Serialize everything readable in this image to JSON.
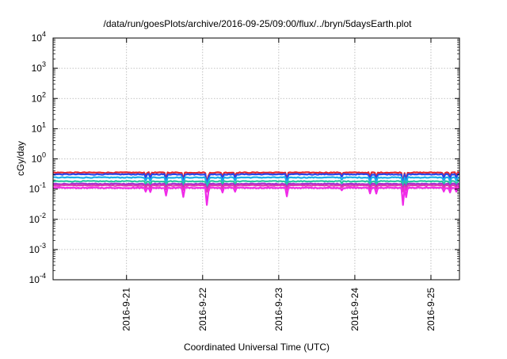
{
  "chart_data": {
    "type": "line",
    "title": "/data/run/goesPlots/archive/2016-09-25/09:00/flux/../bryn/5daysEarth.plot",
    "xlabel": "Coordinated Universal Time (UTC)",
    "ylabel": "cGy/day",
    "yscale": "log",
    "ylim": [
      0.0001,
      10000
    ],
    "y_ticks": [
      {
        "value": 0.0001,
        "base": "10",
        "exp": "-4"
      },
      {
        "value": 0.001,
        "base": "10",
        "exp": "-3"
      },
      {
        "value": 0.01,
        "base": "10",
        "exp": "-2"
      },
      {
        "value": 0.1,
        "base": "10",
        "exp": "-1"
      },
      {
        "value": 1,
        "base": "10",
        "exp": "0"
      },
      {
        "value": 10,
        "base": "10",
        "exp": "1"
      },
      {
        "value": 100,
        "base": "10",
        "exp": "2"
      },
      {
        "value": 1000,
        "base": "10",
        "exp": "3"
      },
      {
        "value": 10000,
        "base": "10",
        "exp": "4"
      }
    ],
    "xlim": [
      "2016-09-20 00:50",
      "2016-09-25 09:00"
    ],
    "x_ticks": [
      "2016-9-21",
      "2016-9-22",
      "2016-9-23",
      "2016-9-24",
      "2016-9-25"
    ],
    "grid": true,
    "series": [
      {
        "color": "#e8262a",
        "level": 0.32,
        "dip_level": 0.15
      },
      {
        "color": "#2a46e8",
        "level": 0.28,
        "dip_level": 0.12
      },
      {
        "color": "#1aaee8",
        "level": 0.22,
        "dip_level": 0.11
      },
      {
        "color": "#2ac6a0",
        "level": 0.165,
        "dip_level": 0.1
      },
      {
        "color": "#a02ad0",
        "level": 0.135,
        "dip_level": 0.09
      },
      {
        "color": "#e03ab0",
        "level": 0.12,
        "dip_level": 0.08
      },
      {
        "color": "#f02ae8",
        "level": 0.1,
        "dip_level": 0.03
      }
    ]
  }
}
